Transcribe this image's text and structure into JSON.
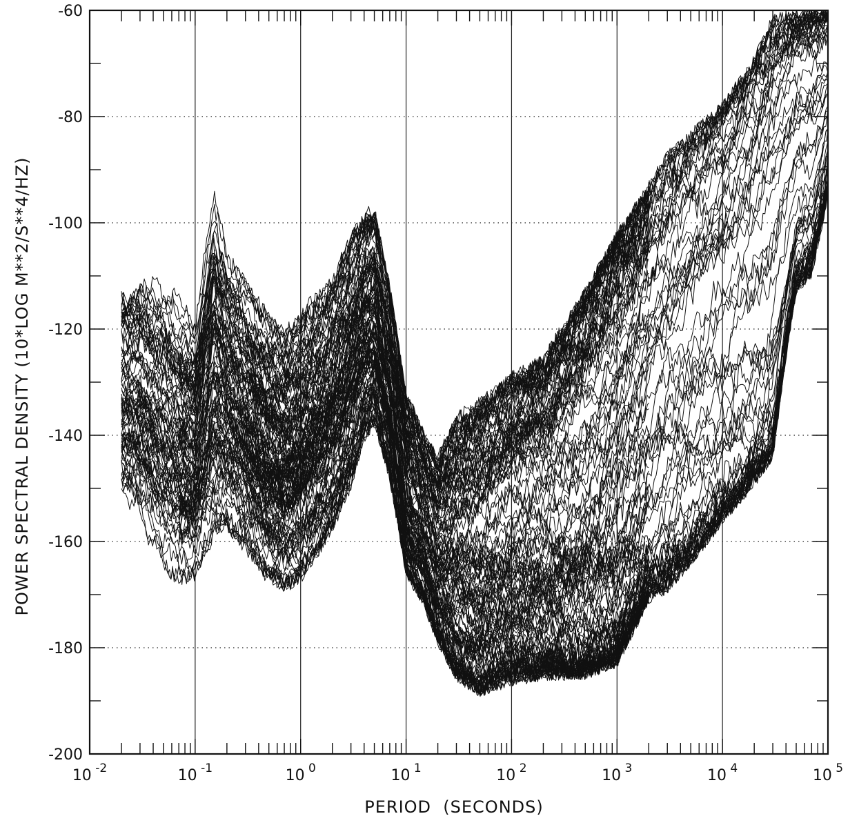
{
  "chart_data": {
    "type": "line",
    "title": "",
    "xlabel": "PERIOD  (SECONDS)",
    "ylabel": "POWER SPECTRAL DENSITY (10*LOG M**2/S**4/HZ)",
    "x_scale": "log",
    "xlim": [
      0.01,
      100000
    ],
    "ylim": [
      -200,
      -60
    ],
    "x_ticks": [
      {
        "value": 0.01,
        "base": "10",
        "exp": "-2"
      },
      {
        "value": 0.1,
        "base": "10",
        "exp": "-1"
      },
      {
        "value": 1,
        "base": "10",
        "exp": "0"
      },
      {
        "value": 10,
        "base": "10",
        "exp": "1"
      },
      {
        "value": 100,
        "base": "10",
        "exp": "2"
      },
      {
        "value": 1000,
        "base": "10",
        "exp": "3"
      },
      {
        "value": 10000,
        "base": "10",
        "exp": "4"
      },
      {
        "value": 100000,
        "base": "10",
        "exp": "5"
      }
    ],
    "y_ticks": [
      {
        "value": -60,
        "label": "-60"
      },
      {
        "value": -80,
        "label": "-80"
      },
      {
        "value": -100,
        "label": "-100"
      },
      {
        "value": -120,
        "label": "-120"
      },
      {
        "value": -140,
        "label": "-140"
      },
      {
        "value": -160,
        "label": "-160"
      },
      {
        "value": -180,
        "label": "-180"
      },
      {
        "value": -200,
        "label": "-200"
      }
    ],
    "grid": {
      "vertical": "solid at decades",
      "horizontal": "dotted at -80 to -180"
    },
    "line_color": "#111111",
    "envelope": {
      "x": [
        0.02,
        0.03,
        0.05,
        0.07,
        0.1,
        0.15,
        0.2,
        0.3,
        0.5,
        0.7,
        1,
        2,
        3,
        4,
        5,
        7,
        10,
        15,
        20,
        30,
        50,
        70,
        100,
        200,
        300,
        500,
        1000,
        2000,
        3000,
        5000,
        10000,
        20000,
        30000,
        40000,
        50000,
        70000,
        100000
      ],
      "upper": [
        -107,
        -105,
        -109,
        -113,
        -117,
        -93,
        -104,
        -110,
        -117,
        -120,
        -116,
        -110,
        -102,
        -98,
        -97,
        -112,
        -132,
        -140,
        -144,
        -136,
        -133,
        -131,
        -128,
        -125,
        -119,
        -112,
        -101,
        -92,
        -86,
        -82,
        -77,
        -68,
        -60,
        -60,
        -60,
        -60,
        -60
      ],
      "lower": [
        -157,
        -160,
        -166,
        -168,
        -167,
        -160,
        -158,
        -162,
        -168,
        -169,
        -168,
        -158,
        -150,
        -141,
        -138,
        -148,
        -166,
        -172,
        -179,
        -186,
        -189,
        -188,
        -187,
        -186,
        -186,
        -186,
        -184,
        -172,
        -170,
        -165,
        -157,
        -150,
        -145,
        -126,
        -113,
        -110,
        -95
      ]
    },
    "traces": 140
  }
}
